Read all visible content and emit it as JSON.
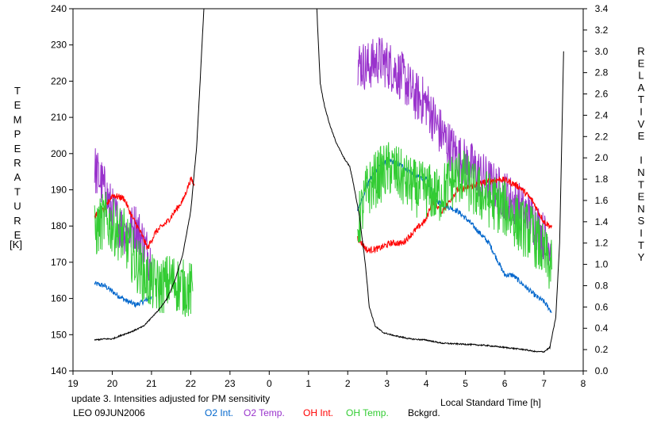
{
  "chart_data": {
    "type": "line",
    "xlabel": "Local Standard Time [h]",
    "ylabel_left": "TEMPERATURE",
    "ylabel_left_unit": "[K]",
    "ylabel_right": "RELATIVE INTENSITY",
    "x_tick_labels": [
      "19",
      "20",
      "21",
      "22",
      "23",
      "0",
      "1",
      "2",
      "3",
      "4",
      "5",
      "6",
      "7",
      "8"
    ],
    "xlim": [
      19,
      32
    ],
    "ylim_left": [
      140,
      240
    ],
    "ylim_right": [
      0.0,
      3.4
    ],
    "y_left_ticks": [
      140,
      150,
      160,
      170,
      180,
      190,
      200,
      210,
      220,
      230,
      240
    ],
    "y_right_ticks": [
      "0.0",
      "0.2",
      "0.4",
      "0.6",
      "0.8",
      "1.0",
      "1.2",
      "1.4",
      "1.6",
      "1.8",
      "2.0",
      "2.2",
      "2.4",
      "2.6",
      "2.8",
      "3.0",
      "3.2",
      "3.4"
    ],
    "grid": false,
    "series": [
      {
        "name": "O2 Int.",
        "axis": "right",
        "color": "#0066cc",
        "noise": 0.025,
        "segments": [
          [
            [
              19.55,
              0.82
            ],
            [
              19.8,
              0.8
            ],
            [
              20.1,
              0.72
            ],
            [
              20.35,
              0.66
            ],
            [
              20.6,
              0.62
            ],
            [
              20.85,
              0.66
            ],
            [
              21.0,
              0.7
            ]
          ],
          [
            [
              26.25,
              1.5
            ],
            [
              26.5,
              1.75
            ],
            [
              26.8,
              1.93
            ],
            [
              27.1,
              1.97
            ],
            [
              27.4,
              1.92
            ],
            [
              27.8,
              1.82
            ],
            [
              28.0,
              1.8
            ],
            [
              28.25,
              1.6
            ],
            [
              28.5,
              1.55
            ],
            [
              28.8,
              1.5
            ],
            [
              29.1,
              1.4
            ],
            [
              29.3,
              1.32
            ],
            [
              29.6,
              1.2
            ],
            [
              29.8,
              1.05
            ],
            [
              30.0,
              0.9
            ],
            [
              30.2,
              0.9
            ],
            [
              30.5,
              0.8
            ],
            [
              30.8,
              0.7
            ],
            [
              31.0,
              0.65
            ],
            [
              31.2,
              0.55
            ]
          ]
        ]
      },
      {
        "name": "O2 Temp.",
        "axis": "left",
        "color": "#9933cc",
        "noise": 7.0,
        "segments": [
          [
            [
              19.55,
              196
            ],
            [
              19.8,
              190
            ],
            [
              20.0,
              184
            ],
            [
              20.2,
              180
            ],
            [
              20.4,
              178
            ],
            [
              20.6,
              180
            ],
            [
              20.8,
              175
            ],
            [
              21.0,
              170
            ]
          ],
          [
            [
              26.25,
              225
            ],
            [
              26.5,
              224
            ],
            [
              26.8,
              226
            ],
            [
              27.1,
              224
            ],
            [
              27.4,
              221
            ],
            [
              27.7,
              216
            ],
            [
              28.0,
              214
            ],
            [
              28.3,
              207
            ],
            [
              28.6,
              202
            ],
            [
              28.9,
              198
            ],
            [
              29.2,
              196
            ],
            [
              29.5,
              193
            ],
            [
              29.8,
              190
            ],
            [
              30.1,
              188
            ],
            [
              30.4,
              185
            ],
            [
              30.7,
              182
            ],
            [
              31.0,
              177
            ],
            [
              31.2,
              175
            ]
          ]
        ]
      },
      {
        "name": "OH Int.",
        "axis": "right",
        "color": "#ff0000",
        "noise": 0.03,
        "segments": [
          [
            [
              19.55,
              1.45
            ],
            [
              19.8,
              1.52
            ],
            [
              20.0,
              1.65
            ],
            [
              20.3,
              1.62
            ],
            [
              20.5,
              1.45
            ],
            [
              20.75,
              1.28
            ],
            [
              20.9,
              1.15
            ],
            [
              21.1,
              1.3
            ],
            [
              21.4,
              1.4
            ],
            [
              21.6,
              1.5
            ],
            [
              21.8,
              1.6
            ],
            [
              22.0,
              1.8
            ],
            [
              22.1,
              1.75
            ]
          ],
          [
            [
              26.25,
              1.25
            ],
            [
              26.5,
              1.13
            ],
            [
              26.8,
              1.15
            ],
            [
              27.1,
              1.2
            ],
            [
              27.4,
              1.2
            ],
            [
              27.8,
              1.35
            ],
            [
              28.0,
              1.42
            ],
            [
              28.15,
              1.6
            ],
            [
              28.4,
              1.5
            ],
            [
              28.6,
              1.6
            ],
            [
              28.8,
              1.7
            ],
            [
              29.0,
              1.72
            ],
            [
              29.3,
              1.75
            ],
            [
              29.6,
              1.78
            ],
            [
              29.9,
              1.8
            ],
            [
              30.1,
              1.78
            ],
            [
              30.4,
              1.72
            ],
            [
              30.7,
              1.6
            ],
            [
              31.0,
              1.4
            ],
            [
              31.2,
              1.35
            ]
          ]
        ]
      },
      {
        "name": "OH Temp.",
        "axis": "left",
        "color": "#33cc33",
        "noise": 8.0,
        "segments": [
          [
            [
              19.55,
              178
            ],
            [
              19.8,
              182
            ],
            [
              20.0,
              180
            ],
            [
              20.3,
              177
            ],
            [
              20.6,
              170
            ],
            [
              20.9,
              165
            ],
            [
              21.2,
              163
            ],
            [
              21.5,
              165
            ],
            [
              21.8,
              163
            ],
            [
              22.05,
              162
            ]
          ],
          [
            [
              26.25,
              180
            ],
            [
              26.5,
              190
            ],
            [
              26.8,
              194
            ],
            [
              27.1,
              196
            ],
            [
              27.5,
              192
            ],
            [
              27.8,
              190
            ],
            [
              28.0,
              190
            ],
            [
              28.3,
              188
            ],
            [
              28.6,
              192
            ],
            [
              28.9,
              194
            ],
            [
              29.2,
              190
            ],
            [
              29.5,
              188
            ],
            [
              29.8,
              186
            ],
            [
              30.1,
              184
            ],
            [
              30.4,
              180
            ],
            [
              30.7,
              178
            ],
            [
              31.0,
              172
            ],
            [
              31.2,
              168
            ]
          ]
        ]
      },
      {
        "name": "Bckgrd.",
        "axis": "right",
        "color": "#000000",
        "noise": 0.006,
        "segments": [
          [
            [
              19.55,
              0.29
            ],
            [
              19.8,
              0.3
            ],
            [
              20.0,
              0.3
            ],
            [
              20.2,
              0.33
            ],
            [
              20.5,
              0.37
            ],
            [
              20.8,
              0.42
            ],
            [
              21.0,
              0.5
            ],
            [
              21.2,
              0.58
            ],
            [
              21.4,
              0.68
            ],
            [
              21.6,
              0.85
            ],
            [
              21.8,
              1.1
            ],
            [
              22.0,
              1.5
            ],
            [
              22.15,
              2.1
            ],
            [
              22.25,
              2.8
            ],
            [
              22.35,
              3.5
            ]
          ],
          [
            [
              25.2,
              3.5
            ],
            [
              25.3,
              2.7
            ],
            [
              25.4,
              2.5
            ],
            [
              25.55,
              2.3
            ],
            [
              25.7,
              2.15
            ],
            [
              25.9,
              2.0
            ],
            [
              26.05,
              1.92
            ],
            [
              26.15,
              1.75
            ],
            [
              26.3,
              1.45
            ],
            [
              26.45,
              1.0
            ],
            [
              26.55,
              0.6
            ],
            [
              26.7,
              0.42
            ],
            [
              26.9,
              0.36
            ],
            [
              27.2,
              0.33
            ],
            [
              27.6,
              0.3
            ],
            [
              28.0,
              0.29
            ],
            [
              28.4,
              0.26
            ],
            [
              29.0,
              0.25
            ],
            [
              29.5,
              0.24
            ],
            [
              30.0,
              0.22
            ],
            [
              30.5,
              0.2
            ],
            [
              30.8,
              0.18
            ],
            [
              31.0,
              0.18
            ],
            [
              31.15,
              0.22
            ],
            [
              31.3,
              0.5
            ],
            [
              31.4,
              1.2
            ],
            [
              31.45,
              2.1
            ],
            [
              31.5,
              3.0
            ]
          ]
        ]
      }
    ],
    "annotation": "update 3. Intensities adjusted for PM sensitivity"
  },
  "footer": {
    "site_date": "LEO 09JUN2006",
    "annotation": "update 3. Intensities adjusted for PM sensitivity",
    "legend": [
      {
        "label": "O2 Int.",
        "color": "#0066cc"
      },
      {
        "label": "O2 Temp.",
        "color": "#9933cc"
      },
      {
        "label": "OH Int.",
        "color": "#ff0000"
      },
      {
        "label": "OH Temp.",
        "color": "#33cc33"
      },
      {
        "label": "Bckgrd.",
        "color": "#000000"
      }
    ]
  }
}
